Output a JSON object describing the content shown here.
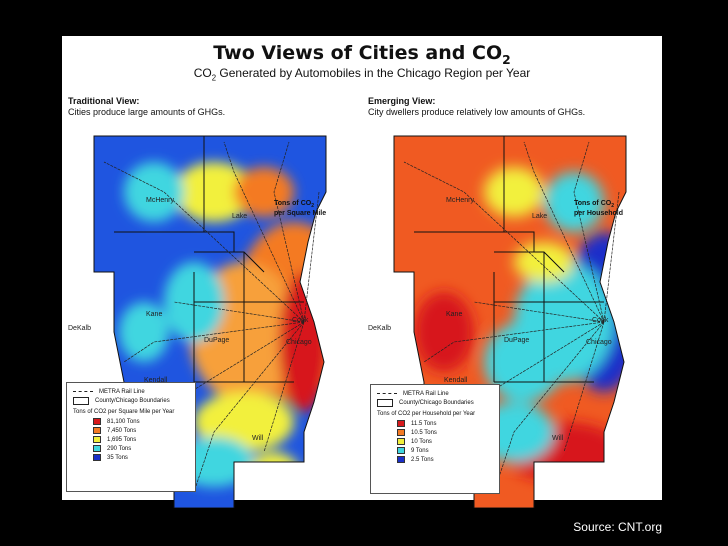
{
  "title": "Two Views of Cities and CO",
  "title_sub": "2",
  "subtitle_pre": "CO",
  "subtitle_sub": "2",
  "subtitle_post": " Generated by Automobiles in the Chicago Region per Year",
  "left": {
    "heading": "Traditional View:",
    "caption": "Cities produce large amounts of GHGs.",
    "unit_line1": "Tons of CO",
    "unit_sub": "2",
    "unit_line2": "per Square Mile",
    "legend_title": "Tons of CO2 per Square Mile per Year",
    "legend_items": [
      {
        "label": "81,100 Tons",
        "color": "#d7191c"
      },
      {
        "label": "7,450 Tons",
        "color": "#f47a24"
      },
      {
        "label": "1,695 Tons",
        "color": "#f2f03c"
      },
      {
        "label": "290 Tons",
        "color": "#3fd6e0"
      },
      {
        "label": "35 Tons",
        "color": "#1a2fc9"
      }
    ]
  },
  "right": {
    "heading": "Emerging View:",
    "caption": "City dwellers produce relatively low amounts of GHGs.",
    "unit_line1": "Tons of CO",
    "unit_sub": "2",
    "unit_line2": "per Household",
    "legend_title": "Tons of CO2 per Household per Year",
    "legend_items": [
      {
        "label": "11.5 Tons",
        "color": "#d7191c"
      },
      {
        "label": "10.5 Tons",
        "color": "#f47a24"
      },
      {
        "label": "10 Tons",
        "color": "#f2f03c"
      },
      {
        "label": "9 Tons",
        "color": "#3fd6e0"
      },
      {
        "label": "2.5 Tons",
        "color": "#1a2fc9"
      }
    ]
  },
  "legend_common": {
    "rail": "METRA Rail Line",
    "boundaries": "County/Chicago Boundaries"
  },
  "places": {
    "mchenry": "McHenry",
    "lake": "Lake",
    "kane": "Kane",
    "dekalb": "DeKalb",
    "dupage": "DuPage",
    "cook": "Cook",
    "chicago": "Chicago",
    "kendall": "Kendall",
    "will": "Will"
  },
  "colors": {
    "red": "#d7191c",
    "orange": "#f47a24",
    "yellow": "#f2f03c",
    "cyan": "#3fd6e0",
    "blue": "#1a2fc9"
  },
  "source": "Source: CNT.org"
}
